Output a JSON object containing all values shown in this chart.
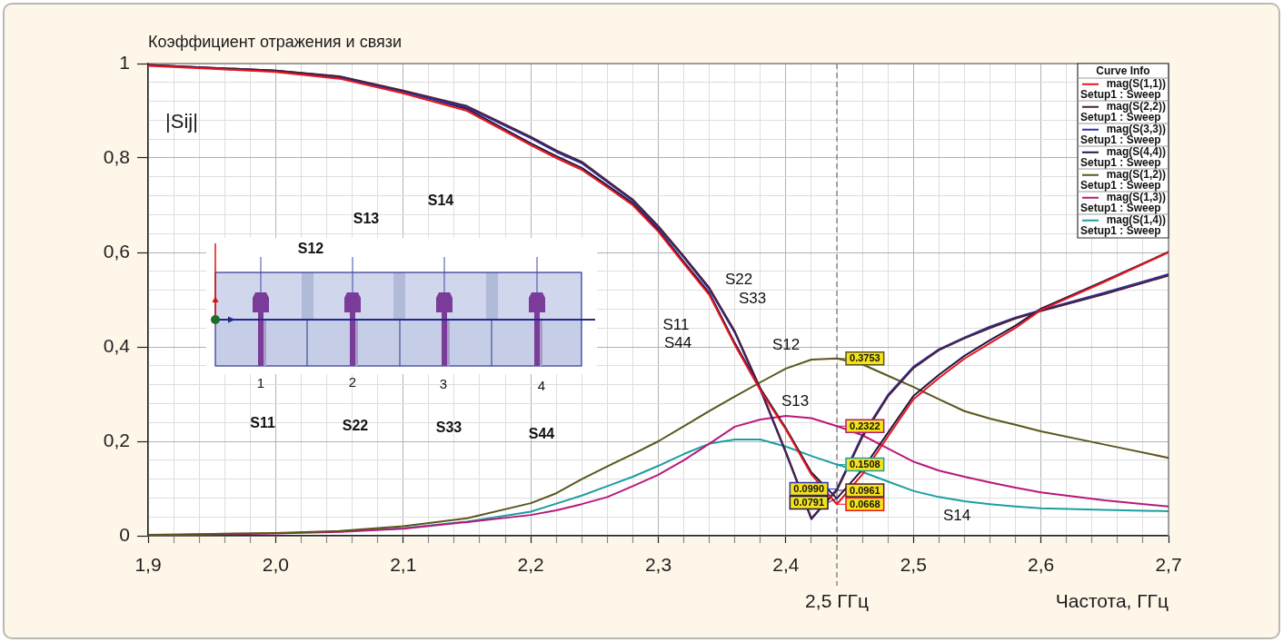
{
  "chart_data": {
    "type": "line",
    "title": "Коэффициент отражения и связи",
    "xlabel": "Частота, ГГц",
    "ylabel": "|Sij|",
    "legend_title": "Curve Info",
    "legend": "top right",
    "grid": true,
    "xlim": [
      1.9,
      2.7
    ],
    "ylim": [
      0,
      1
    ],
    "xticks": [
      {
        "value": 1.9,
        "label": "1,9"
      },
      {
        "value": 1.92,
        "label": null
      },
      {
        "value": 1.94,
        "label": null
      },
      {
        "value": 1.96,
        "label": null
      },
      {
        "value": 1.98,
        "label": null
      },
      {
        "value": 2.0,
        "label": "2,0"
      },
      {
        "value": 2.02,
        "label": null
      },
      {
        "value": 2.04,
        "label": null
      },
      {
        "value": 2.06,
        "label": null
      },
      {
        "value": 2.08,
        "label": null
      },
      {
        "value": 2.1,
        "label": "2,1"
      },
      {
        "value": 2.12,
        "label": null
      },
      {
        "value": 2.14,
        "label": null
      },
      {
        "value": 2.16,
        "label": null
      },
      {
        "value": 2.18,
        "label": null
      },
      {
        "value": 2.2,
        "label": "2,2"
      },
      {
        "value": 2.22,
        "label": null
      },
      {
        "value": 2.24,
        "label": null
      },
      {
        "value": 2.26,
        "label": null
      },
      {
        "value": 2.28,
        "label": null
      },
      {
        "value": 2.3,
        "label": "2,3"
      },
      {
        "value": 2.32,
        "label": null
      },
      {
        "value": 2.34,
        "label": null
      },
      {
        "value": 2.36,
        "label": null
      },
      {
        "value": 2.38,
        "label": null
      },
      {
        "value": 2.4,
        "label": "2,4"
      },
      {
        "value": 2.42,
        "label": null
      },
      {
        "value": 2.44,
        "label": null
      },
      {
        "value": 2.46,
        "label": null
      },
      {
        "value": 2.48,
        "label": null
      },
      {
        "value": 2.5,
        "label": "2,5"
      },
      {
        "value": 2.52,
        "label": null
      },
      {
        "value": 2.54,
        "label": null
      },
      {
        "value": 2.56,
        "label": null
      },
      {
        "value": 2.58,
        "label": null
      },
      {
        "value": 2.6,
        "label": "2,6"
      },
      {
        "value": 2.62,
        "label": null
      },
      {
        "value": 2.64,
        "label": null
      },
      {
        "value": 2.66,
        "label": null
      },
      {
        "value": 2.68,
        "label": null
      },
      {
        "value": 2.7,
        "label": "2,7"
      }
    ],
    "yticks": [
      0,
      {
        "value": 0.04,
        "label": null
      },
      {
        "value": 0.08,
        "label": null
      },
      {
        "value": 0.12,
        "label": null
      },
      {
        "value": 0.16,
        "label": null
      },
      {
        "value": 0.2,
        "label": "0,2"
      },
      {
        "value": 0.24,
        "label": null
      },
      {
        "value": 0.28,
        "label": null
      },
      {
        "value": 0.32,
        "label": null
      },
      {
        "value": 0.36,
        "label": null
      },
      {
        "value": 0.4,
        "label": "0,4"
      },
      {
        "value": 0.44,
        "label": null
      },
      {
        "value": 0.48,
        "label": null
      },
      {
        "value": 0.52,
        "label": null
      },
      {
        "value": 0.56,
        "label": null
      },
      {
        "value": 0.6,
        "label": "0,6"
      },
      {
        "value": 0.64,
        "label": null
      },
      {
        "value": 0.68,
        "label": null
      },
      {
        "value": 0.72,
        "label": null
      },
      {
        "value": 0.76,
        "label": null
      },
      {
        "value": 0.8,
        "label": "0,8"
      },
      {
        "value": 0.84,
        "label": null
      },
      {
        "value": 0.88,
        "label": null
      },
      {
        "value": 0.92,
        "label": null
      },
      {
        "value": 0.96,
        "label": null
      },
      1
    ],
    "ref_lines": [
      {
        "axis": "x",
        "value": 2.44,
        "label": "2,5 ГГц",
        "color": "#7a7a7a",
        "line_style": "dashed"
      }
    ],
    "annotations": [
      "S14",
      "S13",
      "S12",
      "1",
      "2",
      "3",
      "4",
      "S11",
      "S22",
      "S33",
      "S44",
      "S22",
      "S33",
      "S11",
      "S44",
      "S12",
      "S13",
      "S14"
    ],
    "x": [
      1.9,
      1.95,
      2.0,
      2.05,
      2.1,
      2.15,
      2.2,
      2.22,
      2.24,
      2.26,
      2.28,
      2.3,
      2.32,
      2.34,
      2.36,
      2.38,
      2.4,
      2.42,
      2.44,
      2.46,
      2.48,
      2.5,
      2.52,
      2.54,
      2.56,
      2.58,
      2.6,
      2.65,
      2.7
    ],
    "series": [
      {
        "name": "mag(S(1,1)) Setup1 : Sweep",
        "color": "#e8161e",
        "values": [
          0.995,
          0.989,
          0.982,
          0.968,
          0.937,
          0.9,
          0.827,
          0.8,
          0.775,
          0.738,
          0.7,
          0.644,
          0.576,
          0.51,
          0.404,
          0.308,
          0.225,
          0.13,
          0.0668,
          0.13,
          0.21,
          0.289,
          0.334,
          0.375,
          0.408,
          0.44,
          0.478,
          0.538,
          0.6
        ],
        "value_labels": [
          null,
          null,
          null,
          null,
          null,
          null,
          null,
          null,
          null,
          null,
          null,
          null,
          null,
          null,
          null,
          null,
          null,
          null,
          "0.0668",
          null,
          null,
          null,
          null,
          null,
          null,
          null,
          null,
          null,
          null
        ]
      },
      {
        "name": "mag(S(2,2)) Setup1 : Sweep",
        "color": "#4a1e3c",
        "values": [
          0.997,
          0.991,
          0.985,
          0.973,
          0.943,
          0.91,
          0.845,
          0.816,
          0.792,
          0.752,
          0.712,
          0.656,
          0.592,
          0.525,
          0.433,
          0.312,
          0.178,
          0.037,
          0.0961,
          0.209,
          0.295,
          0.355,
          0.393,
          0.418,
          0.44,
          0.46,
          0.476,
          0.512,
          0.551
        ],
        "value_labels": [
          null,
          null,
          null,
          null,
          null,
          null,
          null,
          null,
          null,
          null,
          null,
          null,
          null,
          null,
          null,
          null,
          null,
          null,
          "0.0961",
          null,
          null,
          null,
          null,
          null,
          null,
          null,
          null,
          null,
          null
        ]
      },
      {
        "name": "mag(S(3,3)) Setup1 : Sweep",
        "color": "#2c34a6",
        "values": [
          null,
          null,
          0.983,
          0.97,
          0.94,
          0.907,
          0.842,
          0.813,
          0.789,
          0.749,
          0.709,
          0.653,
          0.589,
          0.522,
          0.43,
          0.309,
          0.175,
          0.035,
          0.099,
          0.213,
          0.298,
          0.358,
          0.395,
          0.42,
          0.443,
          0.462,
          0.478,
          0.515,
          0.554
        ],
        "value_labels": [
          null,
          null,
          null,
          null,
          null,
          null,
          null,
          null,
          null,
          null,
          null,
          null,
          null,
          null,
          null,
          null,
          null,
          null,
          "0.0990",
          null,
          null,
          null,
          null,
          null,
          null,
          null,
          null,
          null,
          null
        ]
      },
      {
        "name": "mag(S(4,4)) Setup1 : Sweep",
        "color": "#221640",
        "values": [
          0.997,
          0.991,
          0.985,
          0.972,
          0.941,
          0.904,
          0.831,
          0.804,
          0.779,
          0.742,
          0.704,
          0.648,
          0.58,
          0.514,
          0.408,
          0.312,
          0.228,
          0.134,
          0.0791,
          0.14,
          0.218,
          0.296,
          0.341,
          0.381,
          0.414,
          0.445,
          0.481,
          0.54,
          0.601
        ],
        "value_labels": [
          null,
          null,
          null,
          null,
          null,
          null,
          null,
          null,
          null,
          null,
          null,
          null,
          null,
          null,
          null,
          null,
          null,
          null,
          "0.0791",
          null,
          null,
          null,
          null,
          null,
          null,
          null,
          null,
          null,
          null
        ]
      },
      {
        "name": "mag(S(1,2)) Setup1 : Sweep",
        "color": "#5a561c",
        "values": [
          0.002,
          0.004,
          0.006,
          0.01,
          0.02,
          0.037,
          0.069,
          0.09,
          0.12,
          0.147,
          0.173,
          0.2,
          0.232,
          0.264,
          0.295,
          0.325,
          0.354,
          0.373,
          0.3753,
          0.363,
          0.339,
          0.315,
          0.289,
          0.264,
          0.248,
          0.235,
          0.221,
          0.193,
          0.165
        ],
        "value_labels": [
          null,
          null,
          null,
          null,
          null,
          null,
          null,
          null,
          null,
          null,
          null,
          null,
          null,
          null,
          null,
          null,
          null,
          null,
          "0.3753",
          null,
          null,
          null,
          null,
          null,
          null,
          null,
          null,
          null,
          null
        ]
      },
      {
        "name": "mag(S(1,3)) Setup1 : Sweep",
        "color": "#b8187a",
        "values": [
          0.001,
          0.003,
          0.005,
          0.008,
          0.015,
          0.029,
          0.044,
          0.054,
          0.067,
          0.082,
          0.105,
          0.129,
          0.16,
          0.195,
          0.231,
          0.246,
          0.254,
          0.249,
          0.2322,
          0.213,
          0.185,
          0.157,
          0.138,
          0.125,
          0.113,
          0.102,
          0.092,
          0.075,
          0.062
        ],
        "value_labels": [
          null,
          null,
          null,
          null,
          null,
          null,
          null,
          null,
          null,
          null,
          null,
          null,
          null,
          null,
          null,
          null,
          null,
          null,
          "0.2322",
          null,
          null,
          null,
          null,
          null,
          null,
          null,
          null,
          null,
          null
        ]
      },
      {
        "name": "mag(S(1,4)) Setup1 : Sweep",
        "color": "#1c9ea2",
        "values": [
          null,
          null,
          null,
          0.009,
          0.016,
          0.03,
          0.051,
          0.068,
          0.085,
          0.105,
          0.125,
          0.148,
          0.173,
          0.195,
          0.204,
          0.204,
          0.189,
          0.169,
          0.1508,
          0.135,
          0.115,
          0.095,
          0.082,
          0.073,
          0.067,
          0.062,
          0.058,
          0.055,
          0.052
        ],
        "value_labels": [
          null,
          null,
          null,
          null,
          null,
          null,
          null,
          null,
          null,
          null,
          null,
          null,
          null,
          null,
          null,
          null,
          null,
          null,
          "0.1508",
          null,
          null,
          null,
          null,
          null,
          null,
          null,
          null,
          null,
          null
        ]
      }
    ]
  }
}
